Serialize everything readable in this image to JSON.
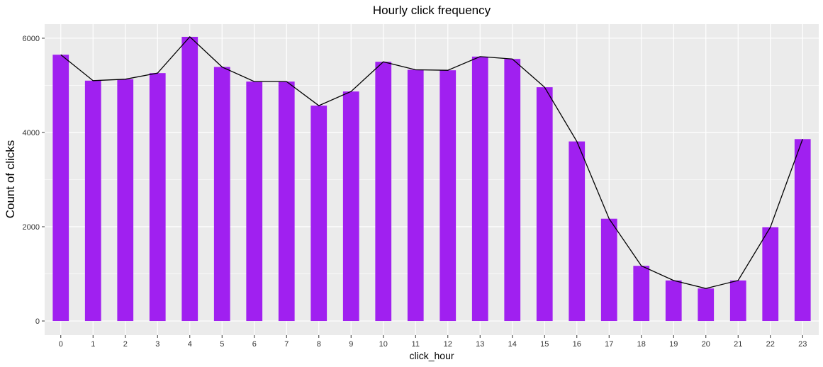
{
  "chart_data": {
    "type": "bar",
    "title": "Hourly click frequency",
    "xlabel": "click_hour",
    "ylabel": "Count of clicks",
    "categories": [
      "0",
      "1",
      "2",
      "3",
      "4",
      "5",
      "6",
      "7",
      "8",
      "9",
      "10",
      "11",
      "12",
      "13",
      "14",
      "15",
      "16",
      "17",
      "18",
      "19",
      "20",
      "21",
      "22",
      "23"
    ],
    "values": [
      5650,
      5100,
      5130,
      5260,
      6030,
      5390,
      5080,
      5080,
      4570,
      4870,
      5500,
      5330,
      5320,
      5610,
      5560,
      4960,
      3810,
      2170,
      1170,
      860,
      690,
      860,
      1990,
      3860
    ],
    "overlay": {
      "type": "line",
      "values": [
        5650,
        5100,
        5130,
        5260,
        6030,
        5390,
        5080,
        5080,
        4570,
        4870,
        5500,
        5330,
        5320,
        5610,
        5560,
        4960,
        3810,
        2170,
        1170,
        860,
        690,
        860,
        1990,
        3860
      ],
      "color": "#000000"
    },
    "ylim": [
      -300,
      6300
    ],
    "yticks": [
      0,
      2000,
      4000,
      6000
    ],
    "grid": true,
    "colors": {
      "bar": "#A020F0",
      "panel": "#EBEBEB",
      "grid": "#FFFFFF",
      "line": "#000000"
    }
  }
}
